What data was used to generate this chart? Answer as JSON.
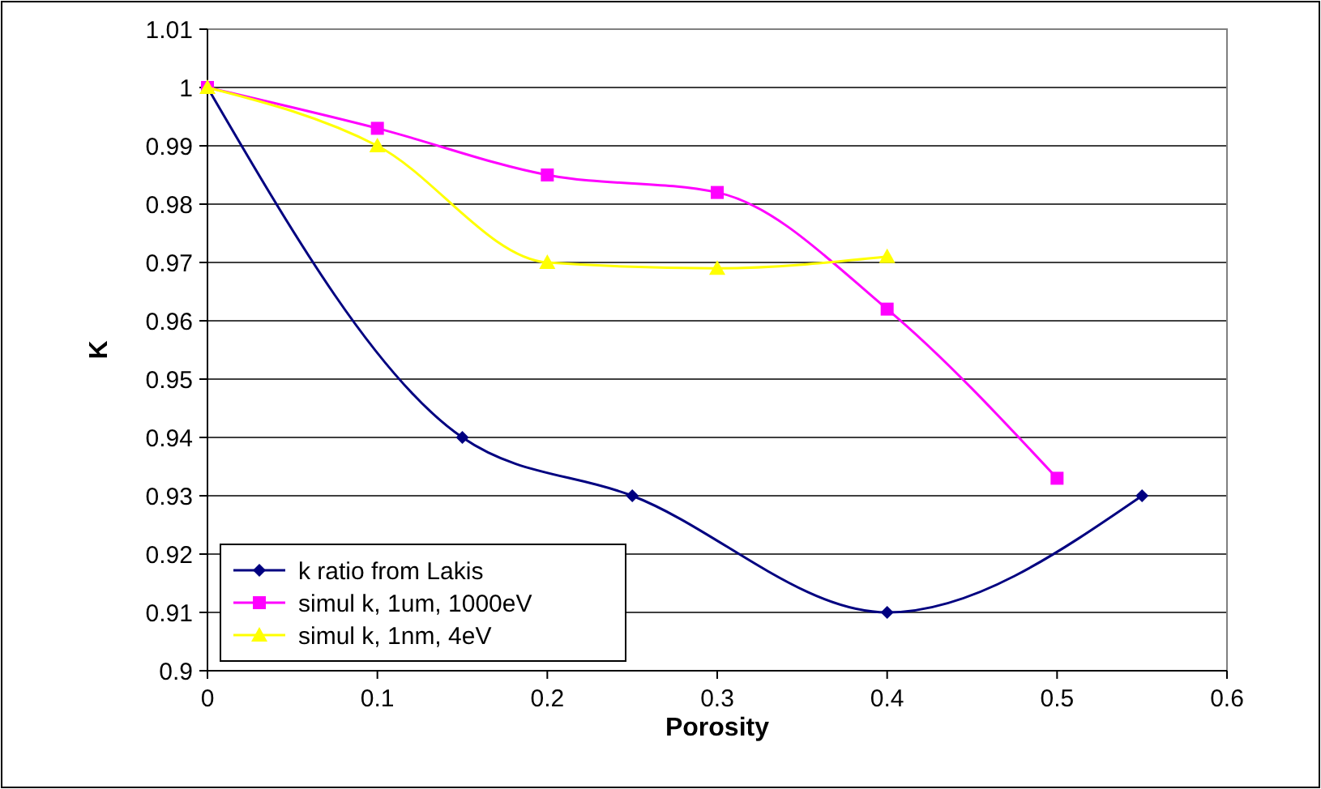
{
  "chart_data": {
    "type": "line",
    "xlabel": "Porosity",
    "ylabel": "K",
    "xlim": [
      0,
      0.6
    ],
    "xticks": [
      0,
      0.1,
      0.2,
      0.3,
      0.4,
      0.5,
      0.6
    ],
    "ylim": [
      0.9,
      1.01
    ],
    "yticks": [
      0.9,
      0.91,
      0.92,
      0.93,
      0.94,
      0.95,
      0.96,
      0.97,
      0.98,
      0.99,
      1,
      1.01
    ],
    "grid": "y",
    "legend": "bottom left",
    "series": [
      {
        "name": "k ratio from Lakis",
        "color": "#000080",
        "marker": "diamond",
        "x": [
          0,
          0.15,
          0.25,
          0.4,
          0.55
        ],
        "values": [
          1,
          0.94,
          0.93,
          0.91,
          0.93
        ]
      },
      {
        "name": "simul k, 1um, 1000eV",
        "color": "#ff00ff",
        "marker": "square",
        "x": [
          0,
          0.1,
          0.2,
          0.3,
          0.4,
          0.5
        ],
        "values": [
          1,
          0.993,
          0.985,
          0.982,
          0.962,
          0.933
        ]
      },
      {
        "name": "simul k, 1nm, 4eV",
        "color": "#ffff00",
        "marker": "triangle",
        "x": [
          0,
          0.1,
          0.2,
          0.3,
          0.4
        ],
        "values": [
          1,
          0.99,
          0.97,
          0.969,
          0.971
        ]
      }
    ]
  }
}
